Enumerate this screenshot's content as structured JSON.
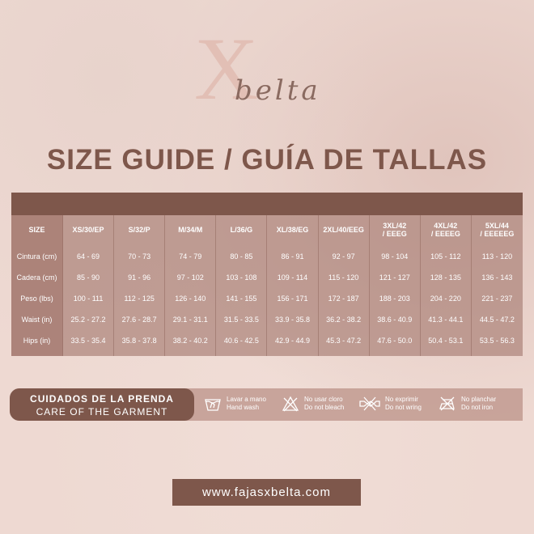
{
  "logo": {
    "mark": "X",
    "word": "belta"
  },
  "title": "SIZE GUIDE / GUÍA DE TALLAS",
  "table": {
    "headers": [
      "SIZE",
      "XS/30/EP",
      "S/32/P",
      "M/34/M",
      "L/36/G",
      "XL/38/EG",
      "2XL/40/EEG",
      "3XL/42 / EEEG",
      "4XL/42 / EEEEG",
      "5XL/44 / EEEEEG"
    ],
    "rows": [
      [
        "Cintura (cm)",
        "64 - 69",
        "70 - 73",
        "74 - 79",
        "80 - 85",
        "86 - 91",
        "92 - 97",
        "98 - 104",
        "105 - 112",
        "113 - 120"
      ],
      [
        "Cadera (cm)",
        "85 - 90",
        "91 - 96",
        "97 - 102",
        "103 - 108",
        "109 - 114",
        "115 - 120",
        "121 - 127",
        "128 - 135",
        "136 - 143"
      ],
      [
        "Peso (lbs)",
        "100 - 111",
        "112 - 125",
        "126 - 140",
        "141 - 155",
        "156 - 171",
        "172 - 187",
        "188 - 203",
        "204 - 220",
        "221 - 237"
      ],
      [
        "Waist (in)",
        "25.2 - 27.2",
        "27.6 - 28.7",
        "29.1 - 31.1",
        "31.5 - 33.5",
        "33.9 - 35.8",
        "36.2 - 38.2",
        "38.6 - 40.9",
        "41.3 - 44.1",
        "44.5  - 47.2"
      ],
      [
        "Hips (in)",
        "33.5 - 35.4",
        "35.8 - 37.8",
        "38.2 - 40.2",
        "40.6 - 42.5",
        "42.9 - 44.9",
        "45.3 - 47.2",
        "47.6 - 50.0",
        "50.4 - 53.1",
        "53.5 - 56.3"
      ]
    ]
  },
  "care": {
    "title_es": "CUIDADOS DE LA PRENDA",
    "title_en": "CARE OF THE GARMENT",
    "items": [
      {
        "icon": "hand-wash-icon",
        "es": "Lavar a mano",
        "en": "Hand wash"
      },
      {
        "icon": "no-bleach-icon",
        "es": "No usar cloro",
        "en": "Do not bleach"
      },
      {
        "icon": "no-wring-icon",
        "es": "No exprimir",
        "en": "Do not wring"
      },
      {
        "icon": "no-iron-icon",
        "es": "No planchar",
        "en": "Do not iron"
      }
    ]
  },
  "website": "www.fajasxbelta.com",
  "colors": {
    "brand": "#7e574b",
    "table_body": "#b89890"
  }
}
